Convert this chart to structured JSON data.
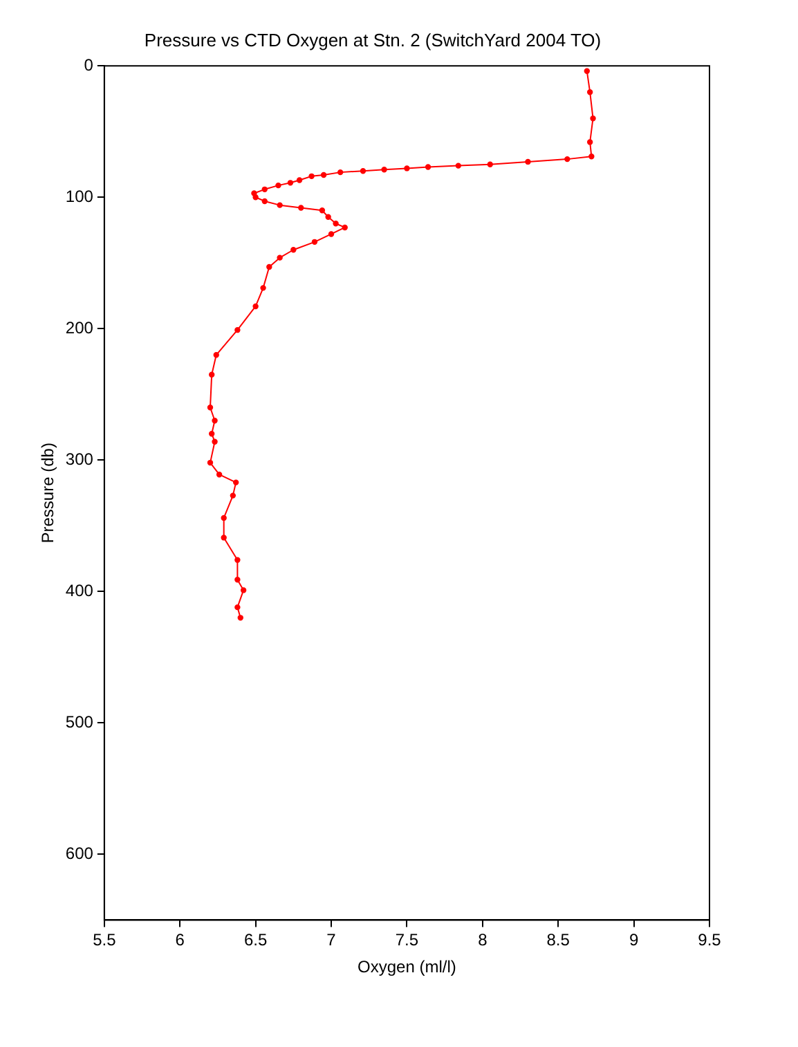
{
  "chart_data": {
    "type": "line",
    "title": "Pressure vs CTD Oxygen at Stn. 2 (SwitchYard 2004 TO)",
    "xlabel": "Oxygen (ml/l)",
    "ylabel": "Pressure (db)",
    "xlim": [
      5.5,
      9.5
    ],
    "xticks": [
      5.5,
      6,
      6.5,
      7,
      7.5,
      8,
      8.5,
      9,
      9.5
    ],
    "ylim": [
      650,
      0
    ],
    "yticks": [
      0,
      100,
      200,
      300,
      400,
      500,
      600
    ],
    "grid": false,
    "legend": false,
    "marker": "circle",
    "line_style": "solid",
    "series": [
      {
        "color": "#ff0000",
        "x": [
          8.69,
          8.71,
          8.73,
          8.71,
          8.72,
          8.56,
          8.3,
          8.05,
          7.84,
          7.64,
          7.5,
          7.35,
          7.21,
          7.06,
          6.95,
          6.87,
          6.79,
          6.73,
          6.65,
          6.56,
          6.49,
          6.5,
          6.56,
          6.66,
          6.8,
          6.94,
          6.98,
          7.03,
          7.09,
          7.0,
          6.89,
          6.75,
          6.66,
          6.59,
          6.55,
          6.5,
          6.38,
          6.24,
          6.21,
          6.2,
          6.23,
          6.21,
          6.23,
          6.2,
          6.26,
          6.37,
          6.35,
          6.29,
          6.29,
          6.38,
          6.38,
          6.42,
          6.38,
          6.4
        ],
        "values": [
          4,
          20,
          40,
          58,
          69,
          71,
          73,
          75,
          76,
          77,
          78,
          79,
          80,
          81,
          83,
          84,
          87,
          89,
          91,
          94,
          97,
          100,
          103,
          106,
          108,
          110,
          115,
          120,
          123,
          128,
          134,
          140,
          146,
          153,
          169,
          183,
          201,
          220,
          235,
          260,
          270,
          280,
          286,
          302,
          311,
          317,
          327,
          344,
          359,
          376,
          391,
          399,
          412,
          420
        ]
      }
    ]
  }
}
